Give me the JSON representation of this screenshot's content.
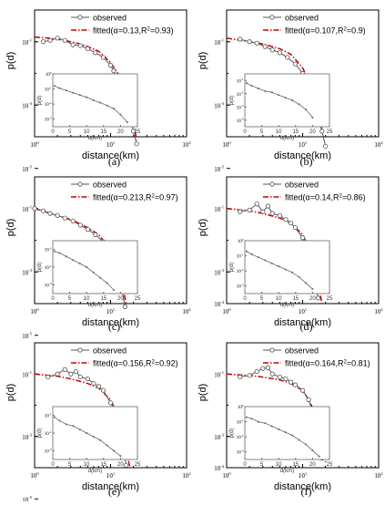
{
  "figure": {
    "panels_layout": "3 rows x 2 columns",
    "colors": {
      "observed": "#555555",
      "fitted": "#cc0000",
      "inset": "#666666",
      "axis": "#000000"
    }
  },
  "chart_data": [
    {
      "panel_label": "(a)",
      "type": "line",
      "xscale": "log",
      "yscale": "log",
      "xlim": [
        1,
        100
      ],
      "ylim": [
        0.0001,
        1
      ],
      "xlabel": "distance(km)",
      "ylabel": "p(d)",
      "x_ticks": [
        "10",
        "10",
        "10"
      ],
      "x_tick_exps": [
        "0",
        "1",
        "2"
      ],
      "y_ticks": [
        "10",
        "10",
        "10"
      ],
      "y_tick_exps": [
        "-5",
        "-3",
        "-1"
      ],
      "legend": {
        "observed": "observed",
        "fitted_prefix": "fitted(α=0.13,R",
        "fitted_sup": "2",
        "fitted_suffix": "=0.93)"
      },
      "series": [
        {
          "name": "observed",
          "style": "line-open-circle",
          "x": [
            1.3,
            1.6,
            2,
            2.5,
            3.2,
            4,
            5,
            6.3,
            8,
            10,
            11,
            12.5,
            14,
            16,
            18,
            20,
            22
          ],
          "y": [
            0.1,
            0.11,
            0.13,
            0.11,
            0.08,
            0.075,
            0.06,
            0.045,
            0.032,
            0.018,
            0.012,
            0.007,
            0.003,
            0.0012,
            0.0004,
            0.00015,
            6e-05
          ]
        },
        {
          "name": "fitted",
          "style": "dash-dot",
          "x": [
            1,
            1.5,
            2,
            3,
            4,
            5,
            7,
            10,
            12.5,
            15,
            18,
            20,
            22
          ],
          "y": [
            0.14,
            0.13,
            0.12,
            0.1,
            0.085,
            0.07,
            0.05,
            0.022,
            0.01,
            0.004,
            0.0009,
            0.0003,
            8e-05
          ]
        }
      ],
      "inset": {
        "xlabel": "d(km)",
        "ylabel": "p(d)",
        "x_ticks": [
          "0",
          "5",
          "10",
          "15",
          "20",
          "25"
        ],
        "xlim": [
          0,
          25
        ],
        "y_ticks": [
          "10",
          "10",
          "10",
          "10"
        ],
        "y_tick_exps": [
          "0",
          "-1",
          "-2",
          "-3"
        ],
        "ylim_exp": [
          -3.5,
          0
        ],
        "x": [
          0.5,
          2,
          4,
          6,
          8,
          10,
          12,
          14,
          16,
          18,
          20,
          22
        ],
        "y_exp": [
          -0.8,
          -0.95,
          -1.1,
          -1.25,
          -1.4,
          -1.55,
          -1.75,
          -1.9,
          -2.1,
          -2.3,
          -2.7,
          -3.2
        ]
      }
    },
    {
      "panel_label": "(b)",
      "type": "line",
      "xscale": "log",
      "yscale": "log",
      "xlim": [
        1,
        100
      ],
      "ylim": [
        0.0001,
        1
      ],
      "xlabel": "distance(km)",
      "ylabel": "p(d)",
      "x_ticks": [
        "10",
        "10",
        "10"
      ],
      "x_tick_exps": [
        "0",
        "1",
        "2"
      ],
      "y_ticks": [
        "10",
        "10",
        "10"
      ],
      "y_tick_exps": [
        "-5",
        "-3",
        "-1"
      ],
      "legend": {
        "observed": "observed",
        "fitted_prefix": "fitted(α=0.107,R",
        "fitted_sup": "2",
        "fitted_suffix": "=0.9)"
      },
      "series": [
        {
          "name": "observed",
          "style": "line-open-circle",
          "x": [
            1.5,
            2,
            2.5,
            3.2,
            4,
            5,
            6.3,
            8,
            10,
            12,
            14,
            16,
            18,
            20
          ],
          "y": [
            0.12,
            0.1,
            0.09,
            0.07,
            0.055,
            0.045,
            0.032,
            0.02,
            0.01,
            0.004,
            0.0015,
            0.0005,
            0.00015,
            5e-05
          ]
        },
        {
          "name": "fitted",
          "style": "dash-dot",
          "x": [
            1,
            2,
            3,
            5,
            7,
            10,
            12,
            14,
            16,
            18
          ],
          "y": [
            0.13,
            0.1,
            0.085,
            0.06,
            0.04,
            0.015,
            0.006,
            0.002,
            0.0006,
            0.00015
          ]
        }
      ],
      "inset": {
        "xlabel": "d(km)",
        "ylabel": "p(d)",
        "x_ticks": [
          "0",
          "5",
          "10",
          "15",
          "20",
          "25"
        ],
        "xlim": [
          0,
          25
        ],
        "y_ticks": [
          "10",
          "10",
          "10",
          "10"
        ],
        "y_tick_exps": [
          "-1",
          "-2",
          "-3",
          "-4"
        ],
        "ylim_exp": [
          -4.5,
          -0.5
        ],
        "x": [
          0.5,
          2,
          4,
          6,
          8,
          10,
          12,
          14,
          16,
          18,
          20
        ],
        "y_exp": [
          -1.2,
          -1.4,
          -1.6,
          -1.8,
          -1.9,
          -2.1,
          -2.3,
          -2.5,
          -2.8,
          -3.2,
          -3.8
        ]
      }
    },
    {
      "panel_label": "(c)",
      "type": "line",
      "xscale": "log",
      "yscale": "log",
      "xlim": [
        1,
        100
      ],
      "ylim": [
        0.0001,
        1
      ],
      "xlabel": "distance(km)",
      "ylabel": "p(d)",
      "x_ticks": [
        "10",
        "10",
        "10"
      ],
      "x_tick_exps": [
        "0",
        "1",
        "2"
      ],
      "y_ticks": [
        "10",
        "10",
        "10"
      ],
      "y_tick_exps": [
        "-5",
        "-3",
        "-1"
      ],
      "legend": {
        "observed": "observed",
        "fitted_prefix": "fitted(α=0.213,R",
        "fitted_sup": "2",
        "fitted_suffix": "=0.97)"
      },
      "series": [
        {
          "name": "observed",
          "style": "line-open-circle",
          "x": [
            1,
            1.3,
            1.6,
            2,
            2.5,
            3.2,
            4,
            5,
            6.3,
            8,
            10,
            11,
            12.5,
            14,
            15.5
          ],
          "y": [
            0.1,
            0.085,
            0.07,
            0.06,
            0.05,
            0.04,
            0.03,
            0.022,
            0.015,
            0.009,
            0.004,
            0.0022,
            0.0009,
            0.0003,
            8e-05
          ]
        },
        {
          "name": "fitted",
          "style": "dash-dot",
          "x": [
            1,
            2,
            3,
            5,
            7,
            10,
            12,
            14,
            16
          ],
          "y": [
            0.1,
            0.06,
            0.045,
            0.025,
            0.015,
            0.005,
            0.0018,
            0.0005,
            0.0001
          ]
        }
      ],
      "inset": {
        "xlabel": "d(km)",
        "ylabel": "p(d)",
        "x_ticks": [
          "0",
          "5",
          "10",
          "15",
          "20",
          "25"
        ],
        "xlim": [
          0,
          25
        ],
        "y_ticks": [
          "10",
          "10",
          "10"
        ],
        "y_tick_exps": [
          "-1",
          "-2",
          "-3"
        ],
        "ylim_exp": [
          -3.5,
          -0.5
        ],
        "x": [
          0.5,
          2,
          4,
          6,
          8,
          10,
          12,
          14,
          16,
          18
        ],
        "y_exp": [
          -1.1,
          -1.2,
          -1.4,
          -1.6,
          -1.8,
          -2.0,
          -2.3,
          -2.6,
          -2.9,
          -3.3
        ]
      }
    },
    {
      "panel_label": "(d)",
      "type": "line",
      "xscale": "log",
      "yscale": "log",
      "xlim": [
        1,
        100
      ],
      "ylim": [
        0.0001,
        1
      ],
      "xlabel": "distance(km)",
      "ylabel": "p(d)",
      "x_ticks": [
        "10",
        "10",
        "10"
      ],
      "x_tick_exps": [
        "0",
        "1",
        "2"
      ],
      "y_ticks": [
        "10",
        "10",
        "10"
      ],
      "y_tick_exps": [
        "-4",
        "-3",
        "-1"
      ],
      "legend": {
        "observed": "observed",
        "fitted_prefix": "fitted(α=0.14,R",
        "fitted_sup": "2",
        "fitted_suffix": "=0.86)"
      },
      "series": [
        {
          "name": "observed",
          "style": "line-open-circle",
          "x": [
            1.5,
            2,
            2.5,
            3,
            3.5,
            4,
            5,
            6,
            7,
            8,
            10,
            12,
            13,
            14,
            15,
            16
          ],
          "y": [
            0.08,
            0.09,
            0.14,
            0.08,
            0.12,
            0.07,
            0.06,
            0.045,
            0.035,
            0.025,
            0.012,
            0.004,
            0.0015,
            0.0006,
            0.0003,
            0.00015
          ]
        },
        {
          "name": "fitted",
          "style": "dash-dot",
          "x": [
            1,
            2,
            3,
            5,
            7,
            10,
            12,
            14,
            16,
            18
          ],
          "y": [
            0.1,
            0.085,
            0.07,
            0.05,
            0.035,
            0.015,
            0.006,
            0.0018,
            0.0004,
            0.0001
          ]
        }
      ],
      "inset": {
        "xlabel": "d(km)",
        "ylabel": "p(d)",
        "x_ticks": [
          "0",
          "5",
          "10",
          "15",
          "20",
          "25"
        ],
        "xlim": [
          0,
          25
        ],
        "y_ticks": [
          "10",
          "10",
          "10",
          "10"
        ],
        "y_tick_exps": [
          "0",
          "-1",
          "-2",
          "-3"
        ],
        "ylim_exp": [
          -3.5,
          0
        ],
        "x": [
          0.5,
          2,
          4,
          6,
          8,
          10,
          12,
          14,
          16,
          18,
          20
        ],
        "y_exp": [
          -0.7,
          -0.9,
          -1.1,
          -1.3,
          -1.5,
          -1.7,
          -1.9,
          -2.1,
          -2.4,
          -2.8,
          -3.2
        ]
      }
    },
    {
      "panel_label": "(e)",
      "type": "line",
      "xscale": "log",
      "yscale": "log",
      "xlim": [
        1,
        100
      ],
      "ylim": [
        0.0001,
        1
      ],
      "xlabel": "distance(km)",
      "ylabel": "p(d)",
      "x_ticks": [
        "10",
        "10",
        "10"
      ],
      "x_tick_exps": [
        "0",
        "1",
        "2"
      ],
      "y_ticks": [
        "10",
        "10",
        "10"
      ],
      "y_tick_exps": [
        "-5",
        "-3",
        "-1"
      ],
      "legend": {
        "observed": "observed",
        "fitted_prefix": "fitted(α=0.156,R",
        "fitted_sup": "2",
        "fitted_suffix": "=0.92)"
      },
      "series": [
        {
          "name": "observed",
          "style": "line-open-circle",
          "x": [
            1.5,
            2,
            2.5,
            3,
            3.5,
            4,
            5,
            6,
            7,
            8,
            10,
            11,
            12.5,
            14,
            15,
            16
          ],
          "y": [
            0.08,
            0.1,
            0.14,
            0.1,
            0.12,
            0.08,
            0.07,
            0.05,
            0.04,
            0.03,
            0.012,
            0.008,
            0.003,
            0.001,
            0.0004,
            0.00012
          ]
        },
        {
          "name": "fitted",
          "style": "dash-dot",
          "x": [
            1,
            2,
            3,
            5,
            7,
            10,
            12,
            14,
            16,
            18
          ],
          "y": [
            0.1,
            0.085,
            0.07,
            0.05,
            0.035,
            0.015,
            0.006,
            0.0018,
            0.0004,
            0.0001
          ]
        }
      ],
      "inset": {
        "xlabel": "d(km)",
        "ylabel": "p(d)",
        "x_ticks": [
          "0",
          "5",
          "10",
          "15",
          "20",
          "25"
        ],
        "xlim": [
          0,
          25
        ],
        "y_ticks": [
          "10",
          "10",
          "10"
        ],
        "y_tick_exps": [
          "-1",
          "-2",
          "-3"
        ],
        "ylim_exp": [
          -3.5,
          -0.5
        ],
        "x": [
          0.5,
          2,
          4,
          6,
          8,
          10,
          12,
          14,
          16,
          18,
          20
        ],
        "y_exp": [
          -1.1,
          -1.3,
          -1.5,
          -1.6,
          -1.8,
          -2.0,
          -2.2,
          -2.4,
          -2.7,
          -3.0,
          -3.3
        ]
      }
    },
    {
      "panel_label": "(f)",
      "type": "line",
      "xscale": "log",
      "yscale": "log",
      "xlim": [
        1,
        100
      ],
      "ylim": [
        0.0001,
        1
      ],
      "xlabel": "distance(km)",
      "ylabel": "p(d)",
      "x_ticks": [
        "10",
        "10",
        "10"
      ],
      "x_tick_exps": [
        "0",
        "1",
        "2"
      ],
      "y_ticks": [
        "10",
        "10",
        "10"
      ],
      "y_tick_exps": [
        "-4",
        "-3",
        "-1"
      ],
      "legend": {
        "observed": "observed",
        "fitted_prefix": "fitted(α=0.164,R",
        "fitted_sup": "2",
        "fitted_suffix": "=0.81)"
      },
      "series": [
        {
          "name": "observed",
          "style": "line-open-circle",
          "x": [
            1.5,
            2,
            2.5,
            3,
            3.5,
            4,
            5,
            6,
            7,
            8,
            10,
            12,
            14,
            15,
            16,
            18
          ],
          "y": [
            0.08,
            0.09,
            0.12,
            0.15,
            0.16,
            0.1,
            0.08,
            0.07,
            0.055,
            0.045,
            0.03,
            0.015,
            0.005,
            0.0015,
            0.0006,
            0.0002
          ]
        },
        {
          "name": "fitted",
          "style": "dash-dot",
          "x": [
            1,
            2,
            3,
            5,
            7,
            10,
            12,
            14,
            16,
            18,
            20
          ],
          "y": [
            0.1,
            0.09,
            0.08,
            0.065,
            0.05,
            0.03,
            0.015,
            0.007,
            0.0025,
            0.0007,
            0.00015
          ]
        }
      ],
      "inset": {
        "xlabel": "d(km)",
        "ylabel": "p(d)",
        "x_ticks": [
          "0",
          "5",
          "10",
          "15",
          "20",
          "25"
        ],
        "xlim": [
          0,
          25
        ],
        "y_ticks": [
          "10",
          "10",
          "10",
          "10"
        ],
        "y_tick_exps": [
          "0",
          "-1",
          "-2",
          "-3"
        ],
        "ylim_exp": [
          -3.5,
          0
        ],
        "x": [
          0.5,
          2,
          4,
          6,
          8,
          10,
          12,
          14,
          16,
          18,
          20,
          22
        ],
        "y_exp": [
          -0.7,
          -0.8,
          -1.0,
          -1.1,
          -1.3,
          -1.5,
          -1.7,
          -1.9,
          -2.2,
          -2.5,
          -2.9,
          -3.3
        ]
      }
    }
  ]
}
